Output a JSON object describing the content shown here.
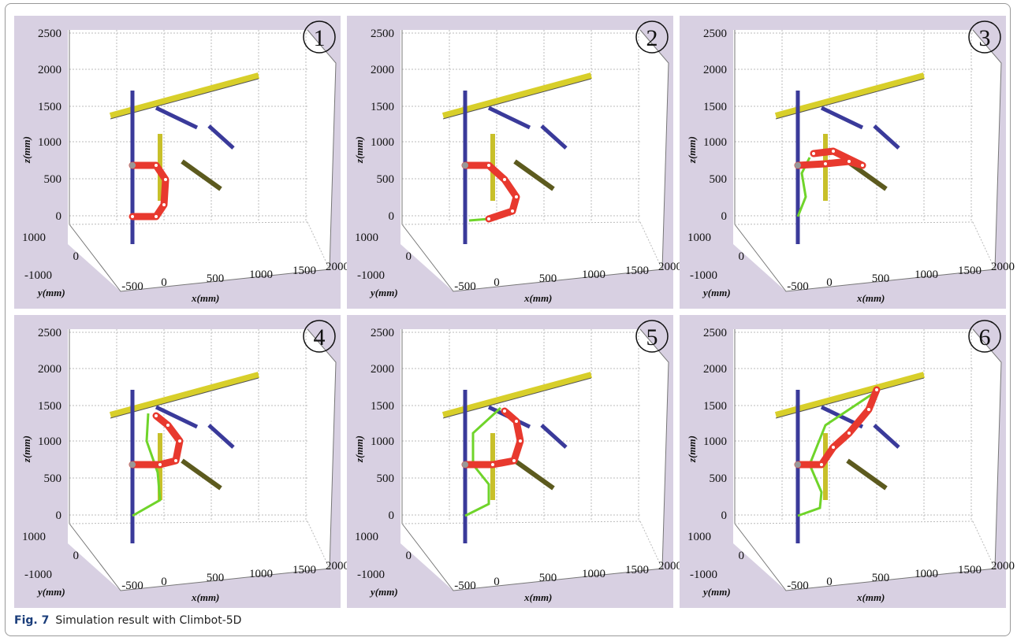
{
  "axes": {
    "zticks": [
      2500,
      2000,
      1500,
      1000,
      500,
      0
    ],
    "yticks": [
      1000,
      0,
      -1000
    ],
    "xticks": [
      -500,
      0,
      500,
      1000,
      1500,
      2000
    ],
    "xlabel": "x(mm)",
    "ylabel": "y(mm)",
    "zlabel": "z(mm)"
  },
  "panels": [
    {
      "label": "1"
    },
    {
      "label": "2"
    },
    {
      "label": "3"
    },
    {
      "label": "4"
    },
    {
      "label": "5"
    },
    {
      "label": "6"
    }
  ],
  "caption": {
    "label": "Fig. 7",
    "text": "Simulation result with Climbot-5D"
  }
}
